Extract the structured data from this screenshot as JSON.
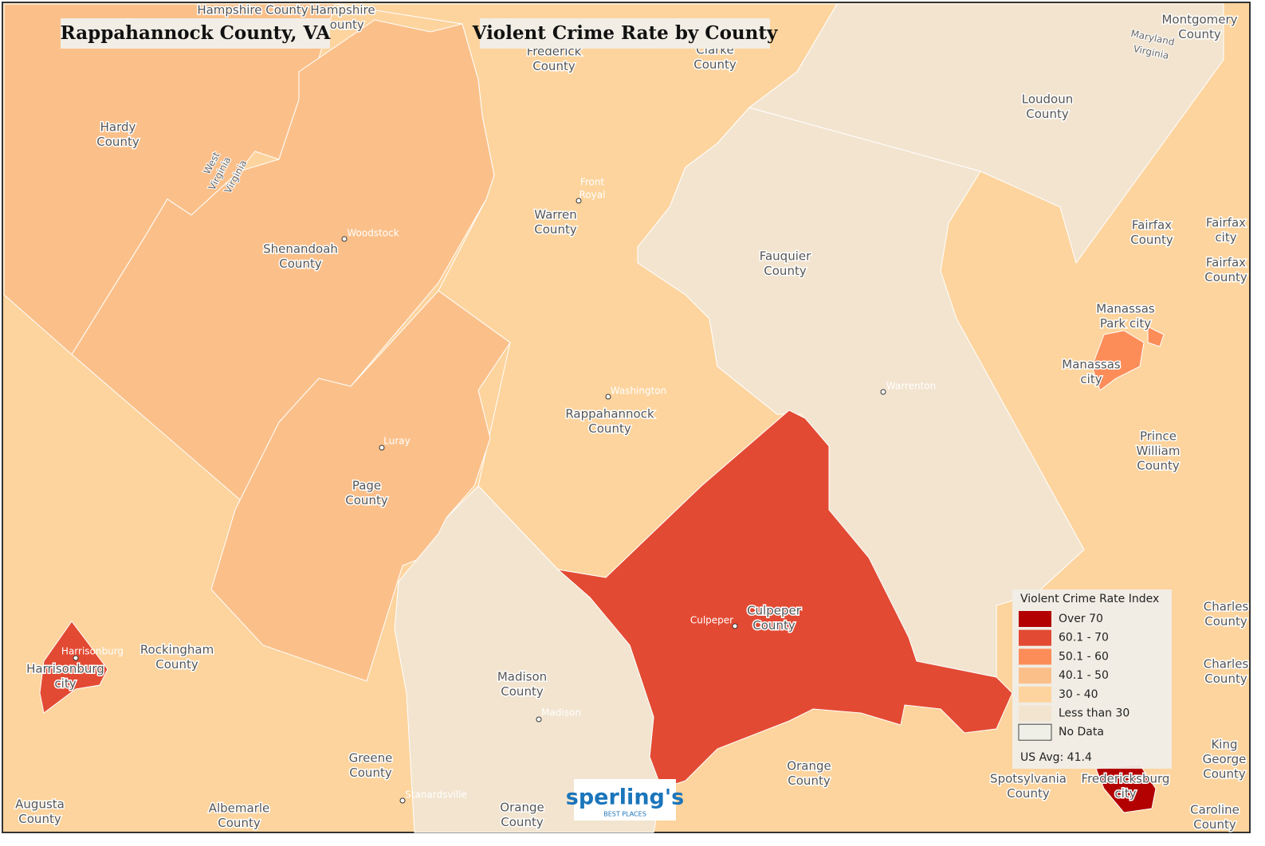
{
  "header": {
    "title": "Rappahannock County, VA",
    "subtitle": "Violent Crime Rate by County"
  },
  "areas": [
    {
      "color": "#fdd49e"
    },
    {
      "color": "#fbc08a"
    },
    {
      "color": "#fbc08a"
    },
    {
      "color": "#fbc08a"
    },
    {
      "color": "#f2e4cf"
    },
    {
      "color": "#f2e4cf"
    },
    {
      "color": "#e34a33"
    },
    {
      "color": "#f2e4cf"
    },
    {
      "color": "#fc8d59"
    },
    {
      "color": "#fc8d59"
    },
    {
      "color": "#e34a33"
    },
    {
      "color": "#b30000"
    }
  ],
  "county_labels": [
    [
      "Hampshire County"
    ],
    [
      "Hampshire",
      "County"
    ],
    [
      "Frederick",
      "County"
    ],
    [
      "Clarke",
      "County"
    ],
    [
      "Montgomery",
      "County"
    ],
    [
      "Loudoun",
      "County"
    ],
    [
      "Hardy",
      "County"
    ],
    [
      "Shenandoah",
      "County"
    ],
    [
      "Warren",
      "County"
    ],
    [
      "Fauquier",
      "County"
    ],
    [
      "Fairfax",
      "County"
    ],
    [
      "Fairfax",
      "city"
    ],
    [
      "Fairfax",
      "County"
    ],
    [
      "Manassas",
      "Park city"
    ],
    [
      "Manassas",
      "city"
    ],
    [
      "Prince",
      "William",
      "County"
    ],
    [
      "Rappahannock",
      "County"
    ],
    [
      "Page",
      "County"
    ],
    [
      "Culpeper",
      "County"
    ],
    [
      "Rockingham",
      "County"
    ],
    [
      "Harrisonburg",
      "city"
    ],
    [
      "Madison",
      "County"
    ],
    [
      "Charles",
      "County"
    ],
    [
      "Charles",
      "County"
    ],
    [
      "King",
      "George",
      "County"
    ],
    [
      "Greene",
      "County"
    ],
    [
      "Orange",
      "County"
    ],
    [
      "Spotsylvania",
      "County"
    ],
    [
      "Fredericksburg",
      "city"
    ],
    [
      "Augusta",
      "County"
    ],
    [
      "Albemarle",
      "County"
    ],
    [
      "Orange",
      "County"
    ],
    [
      "Caroline",
      "County"
    ]
  ],
  "cities": [
    [
      "Woodstock"
    ],
    [
      "Front",
      "Royal"
    ],
    [
      "Washington"
    ],
    [
      "Luray"
    ],
    [
      "Warrenton"
    ],
    [
      "Culpeper"
    ],
    [
      "Madison"
    ],
    [
      "Harrisonburg"
    ],
    [
      "Stanardsville"
    ]
  ],
  "state_labels": [
    "West",
    "Virginia",
    "Virginia",
    "Maryland",
    "Virginia"
  ],
  "legend": {
    "title": "Violent Crime Rate Index",
    "items": [
      {
        "label": "Over 70",
        "color": "#b30000"
      },
      {
        "label": "60.1 - 70",
        "color": "#e34a33"
      },
      {
        "label": "50.1 - 60",
        "color": "#fc8d59"
      },
      {
        "label": "40.1 - 50",
        "color": "#fbc08a"
      },
      {
        "label": "30 - 40",
        "color": "#fdd49e"
      },
      {
        "label": "Less than 30",
        "color": "#f2e4cf"
      },
      {
        "label": "No Data",
        "color": "#efefe8"
      }
    ],
    "note": "US Avg: 41.4"
  },
  "logo": {
    "name": "sperling's",
    "tagline": "BEST PLACES"
  }
}
